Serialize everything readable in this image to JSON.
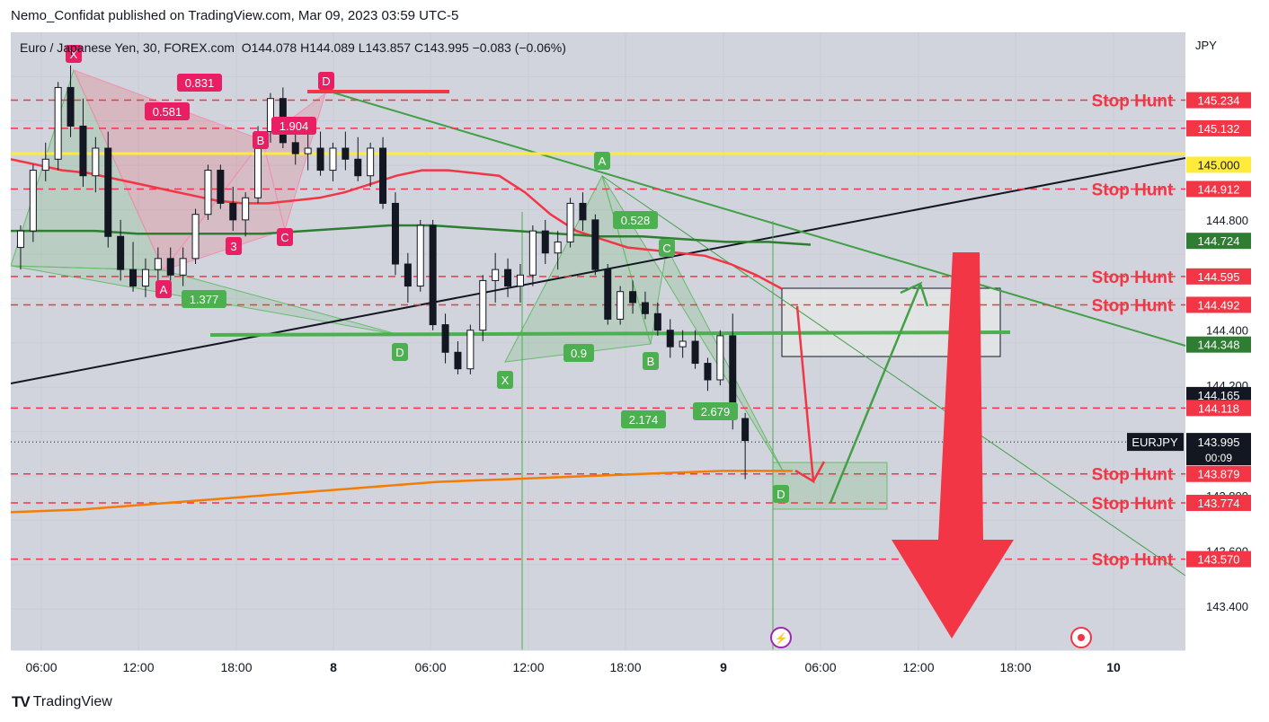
{
  "caption": "Nemo_Confidat published on TradingView.com, Mar 09, 2023 03:59 UTC-5",
  "brand": "TradingView",
  "legend": {
    "symbol": "Euro / Japanese Yen, 30, FOREX.com",
    "open": "O144.078",
    "high": "H144.089",
    "low": "L143.857",
    "close": "C143.995",
    "change": "−0.083 (−0.06%)"
  },
  "chart_data": {
    "type": "candlestick",
    "currency": "JPY",
    "ylim": [
      143.24,
      145.48
    ],
    "y_ticks": [
      143.4,
      143.6,
      143.8,
      144.2,
      144.4,
      144.8
    ],
    "x_ticks": [
      "06:00",
      "12:00",
      "18:00",
      "8",
      "06:00",
      "12:00",
      "18:00",
      "9",
      "06:00",
      "12:00",
      "18:00",
      "10"
    ],
    "candles": [
      [
        144.7,
        144.78,
        144.62,
        144.76
      ],
      [
        144.76,
        145.0,
        144.72,
        144.98
      ],
      [
        144.98,
        145.08,
        144.94,
        145.02
      ],
      [
        145.02,
        145.3,
        144.98,
        145.28
      ],
      [
        145.28,
        145.36,
        145.1,
        145.14
      ],
      [
        145.14,
        145.24,
        144.92,
        144.96
      ],
      [
        144.96,
        145.1,
        144.9,
        145.06
      ],
      [
        145.06,
        145.12,
        144.7,
        144.74
      ],
      [
        144.74,
        144.8,
        144.58,
        144.62
      ],
      [
        144.62,
        144.72,
        144.54,
        144.56
      ],
      [
        144.56,
        144.66,
        144.52,
        144.62
      ],
      [
        144.62,
        144.7,
        144.58,
        144.66
      ],
      [
        144.66,
        144.7,
        144.58,
        144.6
      ],
      [
        144.6,
        144.7,
        144.56,
        144.66
      ],
      [
        144.66,
        144.84,
        144.64,
        144.82
      ],
      [
        144.82,
        145.0,
        144.8,
        144.98
      ],
      [
        144.98,
        145.0,
        144.84,
        144.86
      ],
      [
        144.86,
        144.92,
        144.76,
        144.8
      ],
      [
        144.8,
        144.9,
        144.74,
        144.88
      ],
      [
        144.88,
        145.14,
        144.86,
        145.12
      ],
      [
        145.12,
        145.26,
        145.08,
        145.24
      ],
      [
        145.24,
        145.28,
        145.06,
        145.08
      ],
      [
        145.08,
        145.14,
        145.0,
        145.04
      ],
      [
        145.04,
        145.12,
        144.98,
        145.06
      ],
      [
        145.06,
        145.12,
        144.96,
        144.98
      ],
      [
        144.98,
        145.08,
        144.94,
        145.06
      ],
      [
        145.06,
        145.12,
        144.98,
        145.02
      ],
      [
        145.02,
        145.1,
        144.94,
        144.96
      ],
      [
        144.96,
        145.08,
        144.92,
        145.06
      ],
      [
        145.06,
        145.1,
        144.84,
        144.86
      ],
      [
        144.86,
        144.9,
        144.6,
        144.64
      ],
      [
        144.64,
        144.68,
        144.5,
        144.56
      ],
      [
        144.56,
        144.8,
        144.54,
        144.78
      ],
      [
        144.78,
        144.8,
        144.4,
        144.42
      ],
      [
        144.42,
        144.46,
        144.28,
        144.32
      ],
      [
        144.32,
        144.36,
        144.24,
        144.26
      ],
      [
        144.26,
        144.42,
        144.24,
        144.4
      ],
      [
        144.4,
        144.6,
        144.36,
        144.58
      ],
      [
        144.58,
        144.68,
        144.5,
        144.62
      ],
      [
        144.62,
        144.66,
        144.52,
        144.56
      ],
      [
        144.56,
        144.64,
        144.5,
        144.6
      ],
      [
        144.6,
        144.78,
        144.56,
        144.76
      ],
      [
        144.76,
        144.8,
        144.64,
        144.68
      ],
      [
        144.68,
        144.76,
        144.62,
        144.72
      ],
      [
        144.72,
        144.88,
        144.7,
        144.86
      ],
      [
        144.86,
        144.9,
        144.76,
        144.8
      ],
      [
        144.8,
        144.82,
        144.6,
        144.62
      ],
      [
        144.62,
        144.64,
        144.42,
        144.44
      ],
      [
        144.44,
        144.56,
        144.42,
        144.54
      ],
      [
        144.54,
        144.58,
        144.46,
        144.5
      ],
      [
        144.5,
        144.54,
        144.44,
        144.46
      ],
      [
        144.46,
        144.5,
        144.38,
        144.4
      ],
      [
        144.4,
        144.44,
        144.3,
        144.34
      ],
      [
        144.34,
        144.4,
        144.3,
        144.36
      ],
      [
        144.36,
        144.4,
        144.26,
        144.28
      ],
      [
        144.28,
        144.3,
        144.18,
        144.22
      ],
      [
        144.22,
        144.4,
        144.2,
        144.38
      ],
      [
        144.38,
        144.46,
        144.04,
        144.08
      ],
      [
        144.08,
        144.1,
        143.86,
        144.0
      ]
    ],
    "series": [
      {
        "name": "",
        "color": "#f23645",
        "values": [
          145.02,
          145.0,
          144.98,
          144.97,
          144.95,
          144.93,
          144.91,
          144.89,
          144.87,
          144.86,
          144.86,
          144.87,
          144.88,
          144.9,
          144.93,
          144.96,
          144.98,
          144.98,
          144.97,
          144.96,
          144.9,
          144.82,
          144.76,
          144.73,
          144.7,
          144.69,
          144.68,
          144.67,
          144.64,
          144.6,
          144.55
        ]
      },
      {
        "name": "",
        "color": "#2e7d32",
        "values": [
          144.76,
          144.76,
          144.76,
          144.75,
          144.75,
          144.75,
          144.75,
          144.76,
          144.77,
          144.78,
          144.78,
          144.77,
          144.76,
          144.75,
          144.74,
          144.74,
          144.73,
          144.72,
          144.72,
          144.71
        ]
      },
      {
        "name": "",
        "color": "#f57c00",
        "values": [
          143.74,
          143.75,
          143.77,
          143.79,
          143.81,
          143.83,
          143.85,
          143.86,
          143.87,
          143.88,
          143.89,
          143.89
        ]
      }
    ],
    "price_labels": [
      {
        "value": "145.234",
        "bg": "#f23645",
        "fg": "#ffffff"
      },
      {
        "value": "145.132",
        "bg": "#f23645",
        "fg": "#ffffff"
      },
      {
        "value": "145.000",
        "bg": "#ffeb3b",
        "fg": "#131722"
      },
      {
        "value": "144.912",
        "bg": "#f23645",
        "fg": "#ffffff"
      },
      {
        "value": "144.724",
        "bg": "#2e7d32",
        "fg": "#ffffff"
      },
      {
        "value": "144.595",
        "bg": "#f23645",
        "fg": "#ffffff"
      },
      {
        "value": "144.492",
        "bg": "#f23645",
        "fg": "#ffffff"
      },
      {
        "value": "144.348",
        "bg": "#2e7d32",
        "fg": "#ffffff"
      },
      {
        "value": "144.165",
        "bg": "#131722",
        "fg": "#ffffff"
      },
      {
        "value": "144.118",
        "bg": "#f23645",
        "fg": "#ffffff"
      },
      {
        "value": "143.879",
        "bg": "#f23645",
        "fg": "#ffffff"
      },
      {
        "value": "143.774",
        "bg": "#f23645",
        "fg": "#ffffff"
      },
      {
        "value": "143.570",
        "bg": "#f23645",
        "fg": "#ffffff"
      }
    ],
    "current_price": {
      "symbol": "EURJPY",
      "value": "143.995",
      "countdown": "00:09"
    },
    "stop_hunt_label": "Stop Hunt",
    "stop_hunt_levels": [
      145.234,
      145.132,
      144.912,
      144.595,
      144.492,
      144.118,
      143.879,
      143.774,
      143.57
    ],
    "stop_hunt_text_levels": [
      145.234,
      144.912,
      144.595,
      144.492,
      143.879,
      143.774,
      143.57
    ],
    "pattern_labels": {
      "left": [
        "X",
        "D",
        "B",
        "C",
        "A",
        "3"
      ],
      "left_ratios": [
        "0.831",
        "0.581",
        "1.904",
        "1.377"
      ],
      "right": [
        "A",
        "C",
        "B",
        "X",
        "D",
        "D"
      ],
      "right_ratios": [
        "0.528",
        "0.9",
        "2.174",
        "2.679"
      ]
    }
  }
}
